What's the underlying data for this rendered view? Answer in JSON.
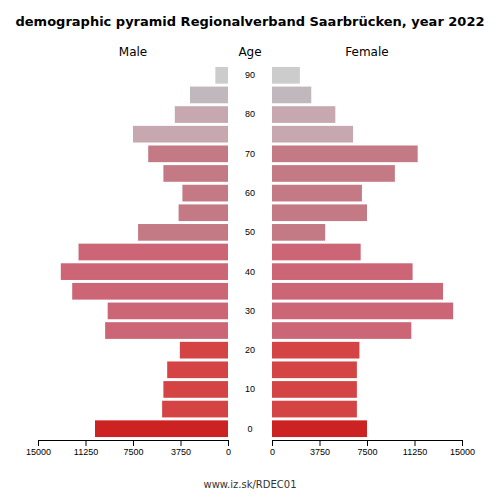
{
  "chart_data": {
    "type": "bar",
    "orientation": "horizontal",
    "title": "demographic pyramid Regionalverband Saarbrücken, year 2022",
    "subtitle": "www.iz.sk/RDEC01",
    "ylabel": "Age",
    "categories": [
      "0",
      null,
      "10",
      null,
      "20",
      null,
      "30",
      null,
      "40",
      null,
      "50",
      null,
      "60",
      null,
      "70",
      null,
      "80",
      null,
      "90"
    ],
    "series": [
      {
        "name": "Male",
        "values": [
          10500,
          5200,
          5100,
          4800,
          3800,
          9700,
          9500,
          12300,
          13200,
          11800,
          7100,
          3900,
          3600,
          5100,
          6300,
          7500,
          4200,
          3000,
          1000
        ],
        "colors": [
          "#cc2222",
          "#d44444",
          "#d44444",
          "#d44444",
          "#d44444",
          "#cc6677",
          "#cc6677",
          "#cc6677",
          "#cc6677",
          "#cc6677",
          "#c47a84",
          "#c47a84",
          "#c47a84",
          "#c47a84",
          "#c47a84",
          "#c8a8b0",
          "#c8a8b0",
          "#c0b8bc",
          "#cccccc"
        ]
      },
      {
        "name": "Female",
        "values": [
          7500,
          6700,
          6700,
          6700,
          6900,
          11000,
          14300,
          13500,
          11100,
          7000,
          4200,
          7500,
          7100,
          9700,
          11500,
          6400,
          5000,
          3100,
          2200
        ],
        "colors": [
          "#cc2222",
          "#d44444",
          "#d44444",
          "#d44444",
          "#d44444",
          "#cc6677",
          "#cc6677",
          "#cc6677",
          "#cc6677",
          "#cc6677",
          "#c47a84",
          "#c47a84",
          "#c47a84",
          "#c47a84",
          "#c47a84",
          "#c8a8b0",
          "#c8a8b0",
          "#c0b8bc",
          "#cccccc"
        ]
      }
    ],
    "xlim": [
      0,
      15000
    ],
    "xticks": [
      0,
      3750,
      7500,
      11250,
      15000
    ]
  }
}
